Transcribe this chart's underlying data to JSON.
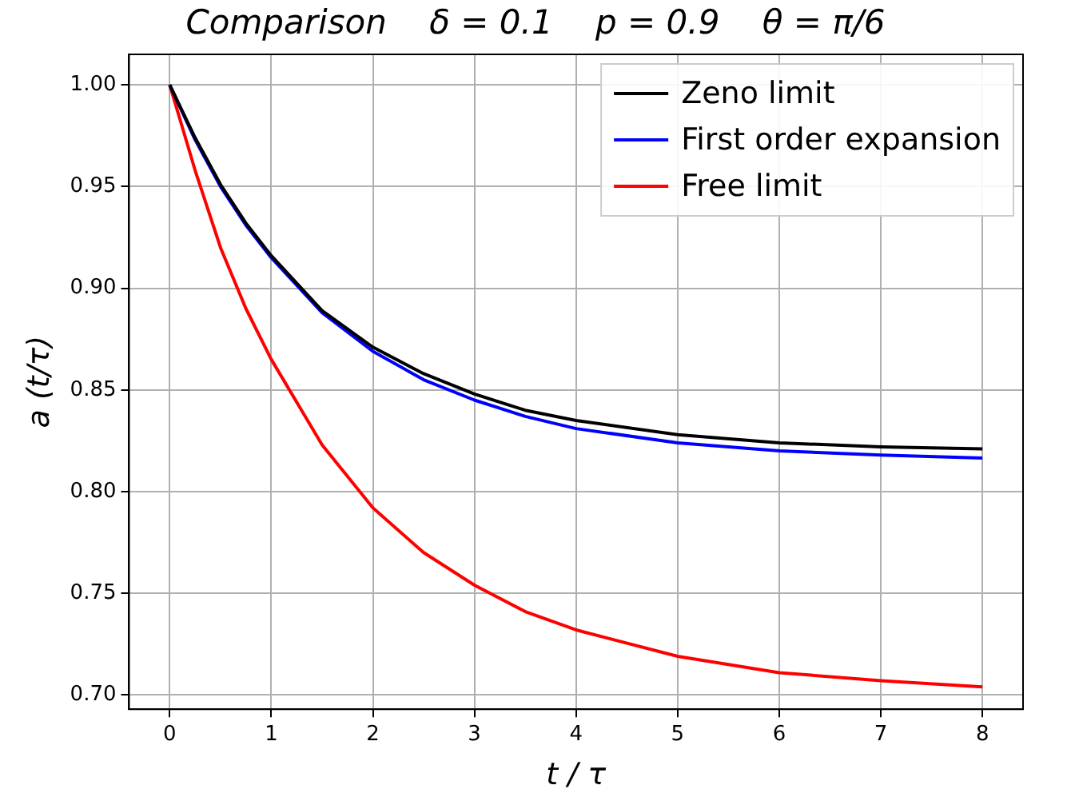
{
  "chart_data": {
    "type": "line",
    "title": "Comparison    δ = 0.1    p = 0.9    θ = π/6",
    "xlabel": "t / τ",
    "ylabel": "a (t/τ)",
    "x": [
      0,
      0.25,
      0.5,
      0.75,
      1,
      1.5,
      2,
      2.5,
      3,
      3.5,
      4,
      5,
      6,
      7,
      8
    ],
    "series": [
      {
        "name": "Zeno limit",
        "color": "#000000",
        "values": [
          1.0,
          0.974,
          0.951,
          0.932,
          0.916,
          0.889,
          0.871,
          0.858,
          0.848,
          0.84,
          0.835,
          0.828,
          0.824,
          0.822,
          0.821
        ]
      },
      {
        "name": "First order expansion",
        "color": "#0000ff",
        "values": [
          1.0,
          0.973,
          0.95,
          0.931,
          0.915,
          0.888,
          0.869,
          0.855,
          0.845,
          0.837,
          0.831,
          0.824,
          0.82,
          0.818,
          0.8165
        ]
      },
      {
        "name": "Free limit",
        "color": "#ff0000",
        "values": [
          1.0,
          0.958,
          0.92,
          0.89,
          0.865,
          0.823,
          0.792,
          0.77,
          0.754,
          0.741,
          0.732,
          0.719,
          0.711,
          0.707,
          0.704
        ]
      }
    ],
    "xlim": [
      -0.4,
      8.4
    ],
    "ylim": [
      0.693,
      1.015
    ],
    "xticks": [
      0,
      1,
      2,
      3,
      4,
      5,
      6,
      7,
      8
    ],
    "yticks": [
      {
        "value": 0.7,
        "label": "0.70"
      },
      {
        "value": 0.75,
        "label": "0.75"
      },
      {
        "value": 0.8,
        "label": "0.80"
      },
      {
        "value": 0.85,
        "label": "0.85"
      },
      {
        "value": 0.9,
        "label": "0.90"
      },
      {
        "value": 0.95,
        "label": "0.95"
      },
      {
        "value": 1.0,
        "label": "1.00"
      }
    ],
    "grid": true,
    "legend": "top right",
    "marker": "none",
    "line_style": "solid"
  }
}
